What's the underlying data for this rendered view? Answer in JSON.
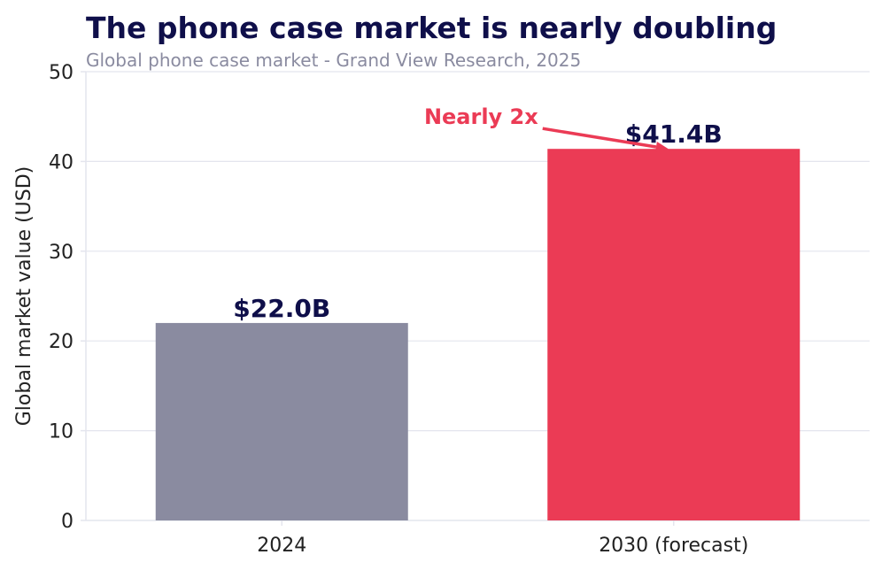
{
  "chart_data": {
    "type": "bar",
    "title": "The phone case market is nearly doubling",
    "subtitle": "Global phone case market  -  Grand View Research, 2025",
    "ylabel": "Global market value (USD)",
    "xlabel": "",
    "ylim": [
      0,
      50
    ],
    "yticks": [
      0,
      10,
      20,
      30,
      40,
      50
    ],
    "grid": true,
    "categories": [
      "2024",
      "2030 (forecast)"
    ],
    "values": [
      22.0,
      41.4
    ],
    "data_labels": [
      "$22.0B",
      "$41.4B"
    ],
    "bar_colors": [
      "#8a8ba0",
      "#eb3b55"
    ],
    "annotation": {
      "text": "Nearly 2x",
      "color": "#eb3b55",
      "target_category": "2030 (forecast)"
    },
    "colors": {
      "title": "#0f0f4a",
      "subtitle": "#8a8ba0",
      "label": "#0f0f4a",
      "axis_text": "#222222",
      "grid": "#e4e5ee"
    }
  }
}
